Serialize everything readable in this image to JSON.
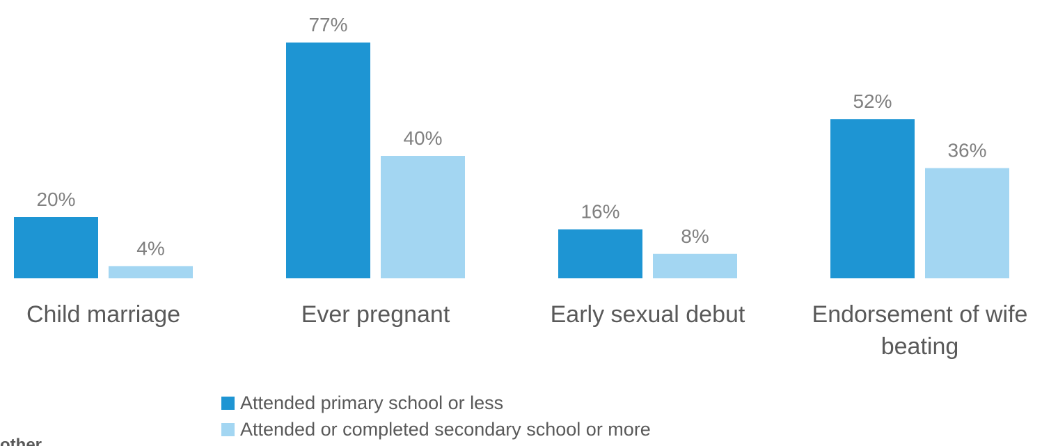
{
  "chart_data": {
    "type": "bar",
    "categories": [
      [
        "Child marriage"
      ],
      [
        "Ever pregnant"
      ],
      [
        "Early sexual debut"
      ],
      [
        "Endorsement of wife",
        "beating"
      ]
    ],
    "series": [
      {
        "name": "Attended primary school or less",
        "values": [
          20,
          77,
          16,
          52
        ],
        "labels": [
          "20%",
          "77%",
          "16%",
          "52%"
        ],
        "color": "#1E95D3"
      },
      {
        "name": "Attended or completed secondary school or more",
        "values": [
          4,
          40,
          8,
          36
        ],
        "labels": [
          "4%",
          "40%",
          "8%",
          "36%"
        ],
        "color": "#A3D6F2"
      }
    ],
    "ylim": [
      0,
      80
    ],
    "grid": false,
    "legend_position": "bottom",
    "label_color": "#808080",
    "category_label_color": "#595959"
  },
  "footnote": "other"
}
